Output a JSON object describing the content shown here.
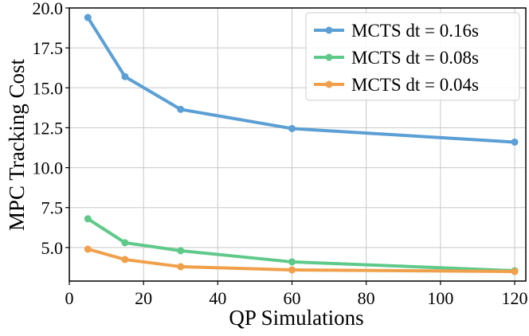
{
  "chart_data": {
    "type": "line",
    "x_label": "QP Simulations",
    "y_label": "MPC Tracking Cost",
    "x": [
      5,
      15,
      30,
      60,
      120
    ],
    "series": [
      {
        "name": "MCTS dt = 0.16s",
        "color": "#5b9fd4",
        "values": [
          19.4,
          15.7,
          13.65,
          12.45,
          11.6
        ]
      },
      {
        "name": "MCTS dt = 0.08s",
        "color": "#5fc98a",
        "values": [
          6.8,
          5.3,
          4.8,
          4.1,
          3.55
        ]
      },
      {
        "name": "MCTS dt = 0.04s",
        "color": "#f0a04b",
        "values": [
          4.9,
          4.25,
          3.8,
          3.6,
          3.5
        ]
      }
    ],
    "xlim": [
      0,
      123
    ],
    "ylim": [
      2.9,
      20.0
    ],
    "xticks": [
      0,
      20,
      40,
      60,
      80,
      100,
      120
    ],
    "yticks": [
      {
        "value": 5,
        "label": "5.0"
      },
      7.5,
      {
        "value": 10,
        "label": "10.0"
      },
      12.5,
      {
        "value": 15,
        "label": "15.0"
      },
      17.5,
      {
        "value": 20,
        "label": "20.0"
      }
    ],
    "grid": true,
    "legend": "upper right"
  }
}
